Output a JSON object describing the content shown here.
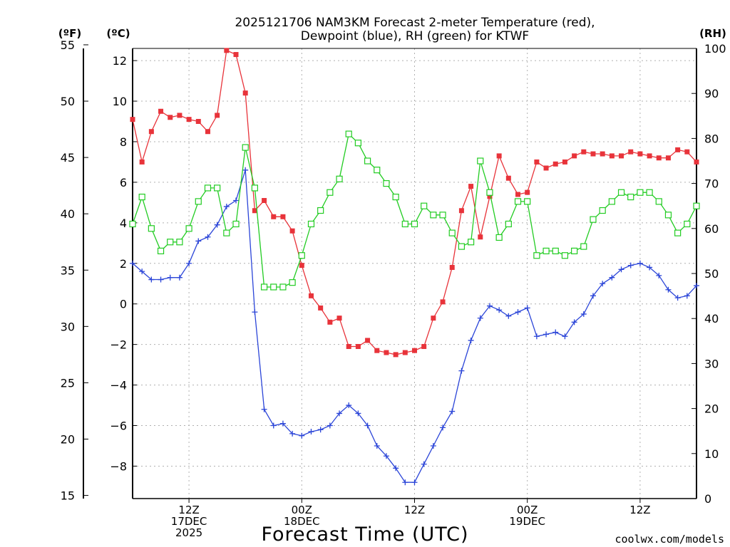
{
  "chart_data": {
    "type": "line",
    "title_line1": "2025121706 NAM3KM Forecast 2-meter Temperature (red),",
    "title_line2": "Dewpoint (blue), RH (green) for KTWF",
    "xlabel": "Forecast Time (UTC)",
    "unit_labels": {
      "fahrenheit": "(ºF)",
      "celsius": "(ºC)",
      "rh": "(RH)"
    },
    "watermark": "coolwx.com/models",
    "x_range_hours": [
      0,
      60
    ],
    "x_ticks": [
      {
        "hour": 6,
        "lines": [
          "12Z",
          "17DEC",
          "2025"
        ]
      },
      {
        "hour": 18,
        "lines": [
          "00Z",
          "18DEC"
        ]
      },
      {
        "hour": 30,
        "lines": [
          "12Z"
        ]
      },
      {
        "hour": 42,
        "lines": [
          "00Z",
          "19DEC"
        ]
      },
      {
        "hour": 54,
        "lines": [
          "12Z"
        ]
      }
    ],
    "celsius_axis": {
      "range": [
        -9.6,
        12.6
      ],
      "ticks": [
        12,
        10,
        8,
        6,
        4,
        2,
        0,
        -2,
        -4,
        -6,
        -8
      ]
    },
    "fahrenheit_axis": {
      "ticks": [
        55,
        50,
        45,
        40,
        35,
        30,
        25,
        20,
        15
      ]
    },
    "rh_axis": {
      "range": [
        0,
        100
      ],
      "ticks": [
        100,
        90,
        80,
        70,
        60,
        50,
        40,
        30,
        20,
        10,
        0
      ]
    },
    "colors": {
      "temperature": "#e8333a",
      "dewpoint": "#2b45d8",
      "rh": "#22cc22",
      "grid": "#b0b0b0",
      "watermark": "#e03030"
    },
    "series": [
      {
        "name": "Temperature (°C)",
        "axis": "celsius",
        "marker": "filled-square",
        "values": [
          9.1,
          7.0,
          8.5,
          9.5,
          9.2,
          9.3,
          9.1,
          9.0,
          8.5,
          9.3,
          12.5,
          12.3,
          10.4,
          4.6,
          5.1,
          4.3,
          4.3,
          3.6,
          1.9,
          0.4,
          -0.2,
          -0.9,
          -0.7,
          -2.1,
          -2.1,
          -1.8,
          -2.3,
          -2.4,
          -2.5,
          -2.4,
          -2.3,
          -2.1,
          -0.7,
          0.1,
          1.8,
          4.6,
          5.8,
          3.3,
          5.3,
          7.3,
          6.2,
          5.4,
          5.5,
          7.0,
          6.7,
          6.9,
          7.0,
          7.3,
          7.5,
          7.4,
          7.4,
          7.3,
          7.3,
          7.5,
          7.4,
          7.3,
          7.2,
          7.2,
          7.6,
          7.5,
          7.0
        ]
      },
      {
        "name": "Dewpoint (°C)",
        "axis": "celsius",
        "marker": "plus",
        "values": [
          2.0,
          1.6,
          1.2,
          1.2,
          1.3,
          1.3,
          2.0,
          3.1,
          3.3,
          3.9,
          4.8,
          5.1,
          6.6,
          -0.4,
          -5.2,
          -6.0,
          -5.9,
          -6.4,
          -6.5,
          -6.3,
          -6.2,
          -6.0,
          -5.4,
          -5.0,
          -5.4,
          -6.0,
          -7.0,
          -7.5,
          -8.1,
          -8.8,
          -8.8,
          -7.9,
          -7.0,
          -6.1,
          -5.3,
          -3.3,
          -1.8,
          -0.7,
          -0.1,
          -0.3,
          -0.6,
          -0.4,
          -0.2,
          -1.6,
          -1.5,
          -1.4,
          -1.6,
          -0.9,
          -0.5,
          0.4,
          1.0,
          1.3,
          1.7,
          1.9,
          2.0,
          1.8,
          1.4,
          0.7,
          0.3,
          0.4,
          0.9
        ]
      },
      {
        "name": "RH (%)",
        "axis": "rh",
        "marker": "open-square",
        "values": [
          61,
          67,
          60,
          55,
          57,
          57,
          60,
          66,
          69,
          69,
          59,
          61,
          78,
          69,
          47,
          47,
          47,
          48,
          54,
          61,
          64,
          68,
          71,
          81,
          79,
          75,
          73,
          70,
          67,
          61,
          61,
          65,
          63,
          63,
          59,
          56,
          57,
          75,
          68,
          58,
          61,
          66,
          66,
          54,
          55,
          55,
          54,
          55,
          56,
          62,
          64,
          66,
          68,
          67,
          68,
          68,
          66,
          63,
          59,
          61,
          65
        ]
      }
    ]
  }
}
